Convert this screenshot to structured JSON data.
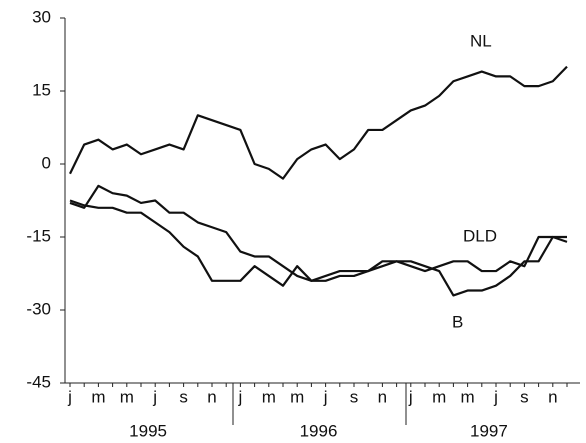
{
  "chart_data": {
    "type": "line",
    "categories": [
      "j",
      null,
      "m",
      null,
      "m",
      null,
      "j",
      null,
      "s",
      null,
      "n",
      null,
      "j",
      null,
      "m",
      null,
      "m",
      null,
      "j",
      null,
      "s",
      null,
      "n",
      null,
      "j",
      null,
      "m",
      null,
      "m",
      null,
      "j",
      null,
      "s",
      null,
      "n",
      null
    ],
    "x_group_labels": [
      "1995",
      "1996",
      "1997"
    ],
    "series": [
      {
        "name": "NL",
        "color": "#111111",
        "values": [
          -2,
          4,
          5,
          3,
          4,
          2,
          3,
          4,
          3,
          10,
          9,
          8,
          7,
          0,
          -1,
          -3,
          1,
          3,
          4,
          1,
          3,
          7,
          7,
          9,
          11,
          12,
          14,
          17,
          18,
          19,
          18,
          18,
          16,
          16,
          17,
          20
        ]
      },
      {
        "name": "DLD",
        "color": "#111111",
        "values": [
          -8,
          -9,
          -4.5,
          -6,
          -6.5,
          -8,
          -7.5,
          -10,
          -10,
          -12,
          -13,
          -14,
          -18,
          -19,
          -19,
          -21,
          -23,
          -24,
          -23,
          -22,
          -22,
          -22,
          -21,
          -20,
          -21,
          -22,
          -21,
          -20,
          -20,
          -22,
          -22,
          -20,
          -21,
          -15,
          -15,
          -15
        ]
      },
      {
        "name": "B",
        "color": "#111111",
        "values": [
          -7.5,
          -8.5,
          -9,
          -9,
          -10,
          -10,
          -12,
          -14,
          -17,
          -19,
          -24,
          -24,
          -24,
          -21,
          -23,
          -25,
          -21,
          -24,
          -24,
          -23,
          -23,
          -22,
          -20,
          -20,
          -20,
          -21,
          -22,
          -27,
          -26,
          -26,
          -25,
          -23,
          -20,
          -20,
          -15,
          -16
        ]
      }
    ],
    "ylim": [
      -45,
      30
    ],
    "yticks": [
      -45,
      -30,
      -15,
      0,
      15,
      30
    ],
    "grid": false
  }
}
